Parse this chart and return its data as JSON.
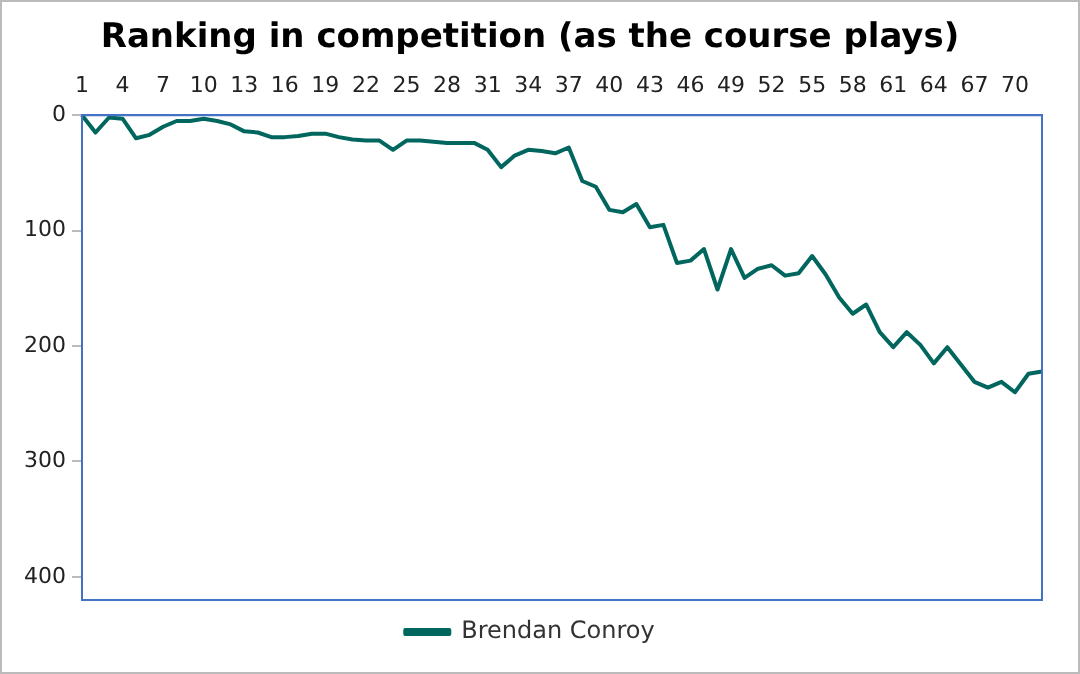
{
  "chart_data": {
    "type": "line",
    "title": "Ranking in competition (as the course plays)",
    "categories": [
      "1",
      null,
      null,
      "4",
      null,
      null,
      "7",
      null,
      null,
      "10",
      null,
      null,
      "13",
      null,
      null,
      "16",
      null,
      null,
      "19",
      null,
      null,
      "22",
      null,
      null,
      "25",
      null,
      null,
      "28",
      null,
      null,
      "31",
      null,
      null,
      "34",
      null,
      null,
      "37",
      null,
      null,
      "40",
      null,
      null,
      "43",
      null,
      null,
      "46",
      null,
      null,
      "49",
      null,
      null,
      "52",
      null,
      null,
      "55",
      null,
      null,
      "58",
      null,
      null,
      "61",
      null,
      null,
      "64",
      null,
      null,
      "67",
      null,
      null,
      "70",
      null,
      null
    ],
    "series": [
      {
        "name": "Brendan Conroy",
        "color": "#00665e",
        "values": [
          0,
          15,
          2,
          3,
          20,
          17,
          10,
          5,
          5,
          3,
          5,
          8,
          14,
          15,
          19,
          19,
          18,
          16,
          16,
          19,
          21,
          22,
          22,
          30,
          22,
          22,
          23,
          24,
          24,
          24,
          30,
          45,
          35,
          30,
          31,
          33,
          28,
          57,
          62,
          82,
          84,
          77,
          97,
          95,
          128,
          126,
          116,
          151,
          116,
          141,
          133,
          130,
          139,
          137,
          122,
          138,
          158,
          172,
          164,
          188,
          201,
          188,
          199,
          215,
          201,
          216,
          231,
          236,
          231,
          240,
          224,
          222
        ]
      }
    ],
    "ylim": [
      420,
      0
    ],
    "yticks": [
      0,
      100,
      200,
      300,
      400
    ],
    "grid": false,
    "legend": "bottom",
    "marker": "none",
    "line_style": "solid"
  }
}
